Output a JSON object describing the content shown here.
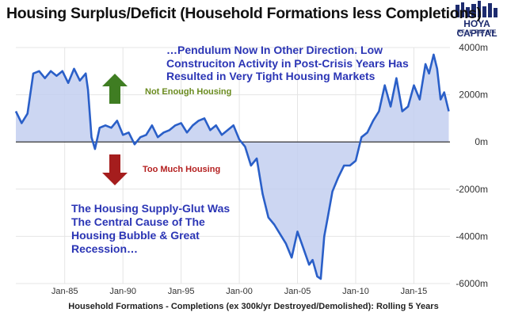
{
  "colors": {
    "line": "#2a5fc8",
    "fill": "#c3cff0",
    "zero_line": "#222222",
    "grid": "#e4e4e4",
    "arrow_up": "#3f7d22",
    "arrow_down": "#a51d1d",
    "annotation": "#2b35b5",
    "logo": "#1d2b6e"
  },
  "logo": {
    "line1": "HOYA CAPITAL",
    "line2": "REAL ESTATE",
    "icon": "city-skyline-icon"
  },
  "annotations": {
    "pendulum": "…Pendulum Now In Other Direction. Low Construciton Activity in Post-Crisis Years Has Resulted in Very Tight Housing Markets",
    "glut": "The Housing Supply-Glut Was The Central Cause of The Housing Bubble & Great Recession…",
    "not_enough": "Not Enough Housing",
    "too_much": "Too Much Housing",
    "arrow_up_icon": "up-arrow-icon",
    "arrow_down_icon": "down-arrow-icon"
  },
  "chart_data": {
    "type": "area",
    "title": "Housing Surplus/Deficit (Household Formations less Completions)",
    "xlabel": "Household Formations - Completions (ex 300k/yr Destroyed/Demolished): Rolling 5 Years",
    "ylabel": "",
    "xlim": [
      1980.8,
      2018.1
    ],
    "ylim": [
      -6000,
      4000
    ],
    "y_axis_side": "right",
    "y_ticks": [
      4000,
      2000,
      0,
      -2000,
      -4000,
      -6000
    ],
    "y_tick_labels": [
      "4000m",
      "2000m",
      "0m",
      "-2000m",
      "-4000m",
      "-6000m"
    ],
    "x_ticks": [
      1985,
      1990,
      1995,
      2000,
      2005,
      2010,
      2015
    ],
    "x_tick_labels": [
      "Jan-85",
      "Jan-90",
      "Jan-95",
      "Jan-00",
      "Jan-05",
      "Jan-10",
      "Jan-15"
    ],
    "grid": true,
    "legend": "none",
    "series": [
      {
        "x": [
          1980.8,
          1981.3,
          1981.8,
          1982.3,
          1982.8,
          1983.3,
          1983.8,
          1984.3,
          1984.8,
          1985.3,
          1985.8,
          1986.3,
          1986.8,
          1987.0,
          1987.3,
          1987.6,
          1988.0,
          1988.5,
          1989.0,
          1989.5,
          1990.0,
          1990.5,
          1991.0,
          1991.5,
          1992.0,
          1992.5,
          1993.0,
          1993.5,
          1994.0,
          1994.5,
          1995.0,
          1995.5,
          1996.0,
          1996.5,
          1997.0,
          1997.5,
          1998.0,
          1998.5,
          1999.0,
          1999.5,
          2000.0,
          2000.5,
          2001.0,
          2001.5,
          2002.0,
          2002.5,
          2003.0,
          2003.5,
          2004.0,
          2004.5,
          2005.0,
          2005.5,
          2006.0,
          2006.3,
          2006.7,
          2007.0,
          2007.3,
          2007.6,
          2008.0,
          2008.5,
          2009.0,
          2009.5,
          2010.0,
          2010.5,
          2011.0,
          2011.5,
          2012.0,
          2012.5,
          2013.0,
          2013.5,
          2014.0,
          2014.5,
          2015.0,
          2015.5,
          2016.0,
          2016.3,
          2016.7,
          2017.0,
          2017.3,
          2017.6,
          2018.0
        ],
        "y": [
          1300,
          800,
          1200,
          2900,
          3000,
          2700,
          3000,
          2800,
          3000,
          2500,
          3100,
          2600,
          2900,
          2200,
          200,
          -300,
          600,
          700,
          600,
          900,
          300,
          400,
          -100,
          200,
          300,
          700,
          200,
          400,
          500,
          700,
          800,
          400,
          700,
          900,
          1000,
          500,
          700,
          300,
          500,
          700,
          100,
          -200,
          -1000,
          -700,
          -2200,
          -3200,
          -3500,
          -3900,
          -4300,
          -4900,
          -3800,
          -4500,
          -5200,
          -5000,
          -5700,
          -5800,
          -4000,
          -3200,
          -2100,
          -1500,
          -1000,
          -1000,
          -800,
          200,
          400,
          900,
          1300,
          2400,
          1500,
          2700,
          1300,
          1500,
          2400,
          1800,
          3300,
          2900,
          3700,
          3100,
          1800,
          2100,
          1300
        ]
      }
    ]
  }
}
